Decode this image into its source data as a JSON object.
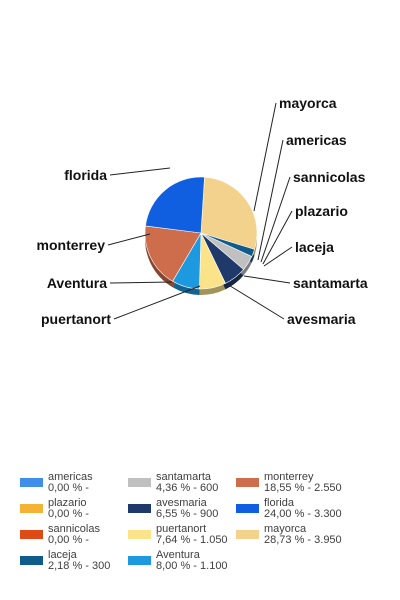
{
  "chart_data": {
    "type": "pie",
    "categories": [
      "americas",
      "plazario",
      "sannicolas",
      "laceja",
      "santamarta",
      "avesmaria",
      "puertanort",
      "Aventura",
      "monterrey",
      "florida",
      "mayorca"
    ],
    "values": [
      0,
      0,
      0,
      300,
      600,
      900,
      1050,
      1100,
      2550,
      3300,
      3950
    ],
    "colors": [
      "#3f8fea",
      "#f5b335",
      "#df4a16",
      "#0f5c8c",
      "#c0c0c0",
      "#1f3a6a",
      "#fbe38a",
      "#1c99df",
      "#cd6d4c",
      "#0f5fe0",
      "#f3d28e"
    ],
    "legend": [
      {
        "name": "americas",
        "detail": "0,00 % -"
      },
      {
        "name": "plazario",
        "detail": "0,00 % -"
      },
      {
        "name": "sannicolas",
        "detail": "0,00 % -"
      },
      {
        "name": "laceja",
        "detail": "2,18 % - 300"
      },
      {
        "name": "santamarta",
        "detail": "4,36 % - 600"
      },
      {
        "name": "avesmaria",
        "detail": "6,55 % - 900"
      },
      {
        "name": "puertanort",
        "detail": "7,64 % - 1.050"
      },
      {
        "name": "Aventura",
        "detail": "8,00 % - 1.100"
      },
      {
        "name": "monterrey",
        "detail": "18,55 % - 2.550"
      },
      {
        "name": "florida",
        "detail": "24,00 % - 3.300"
      },
      {
        "name": "mayorca",
        "detail": "28,73 % - 3.950"
      }
    ],
    "legend_position": "bottom"
  }
}
